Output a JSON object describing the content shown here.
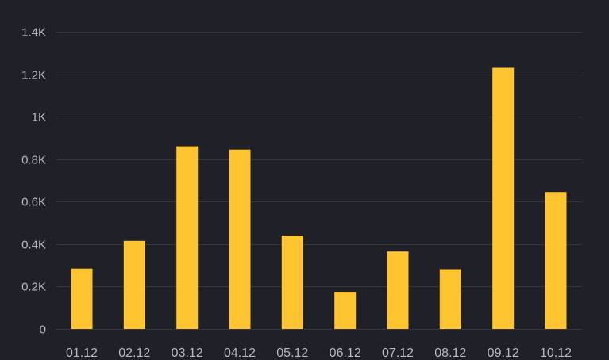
{
  "chart_data": {
    "type": "bar",
    "categories": [
      "01.12",
      "02.12",
      "03.12",
      "04.12",
      "05.12",
      "06.12",
      "07.12",
      "08.12",
      "09.12",
      "10.12"
    ],
    "values": [
      285,
      415,
      860,
      845,
      440,
      175,
      365,
      282,
      1230,
      645
    ],
    "ylim": [
      0,
      1400
    ],
    "y_ticks": [
      0,
      200,
      400,
      600,
      800,
      1000,
      1200,
      1400
    ],
    "y_tick_labels": [
      "0",
      "0.2K",
      "0.4K",
      "0.6K",
      "0.8K",
      "1K",
      "1.2K",
      "1.4K"
    ],
    "grid": true,
    "bar_color": "#ffc531",
    "background_color": "#1f2028",
    "grid_color": "#34363f",
    "tick_label_color": "#b7b9c2"
  }
}
